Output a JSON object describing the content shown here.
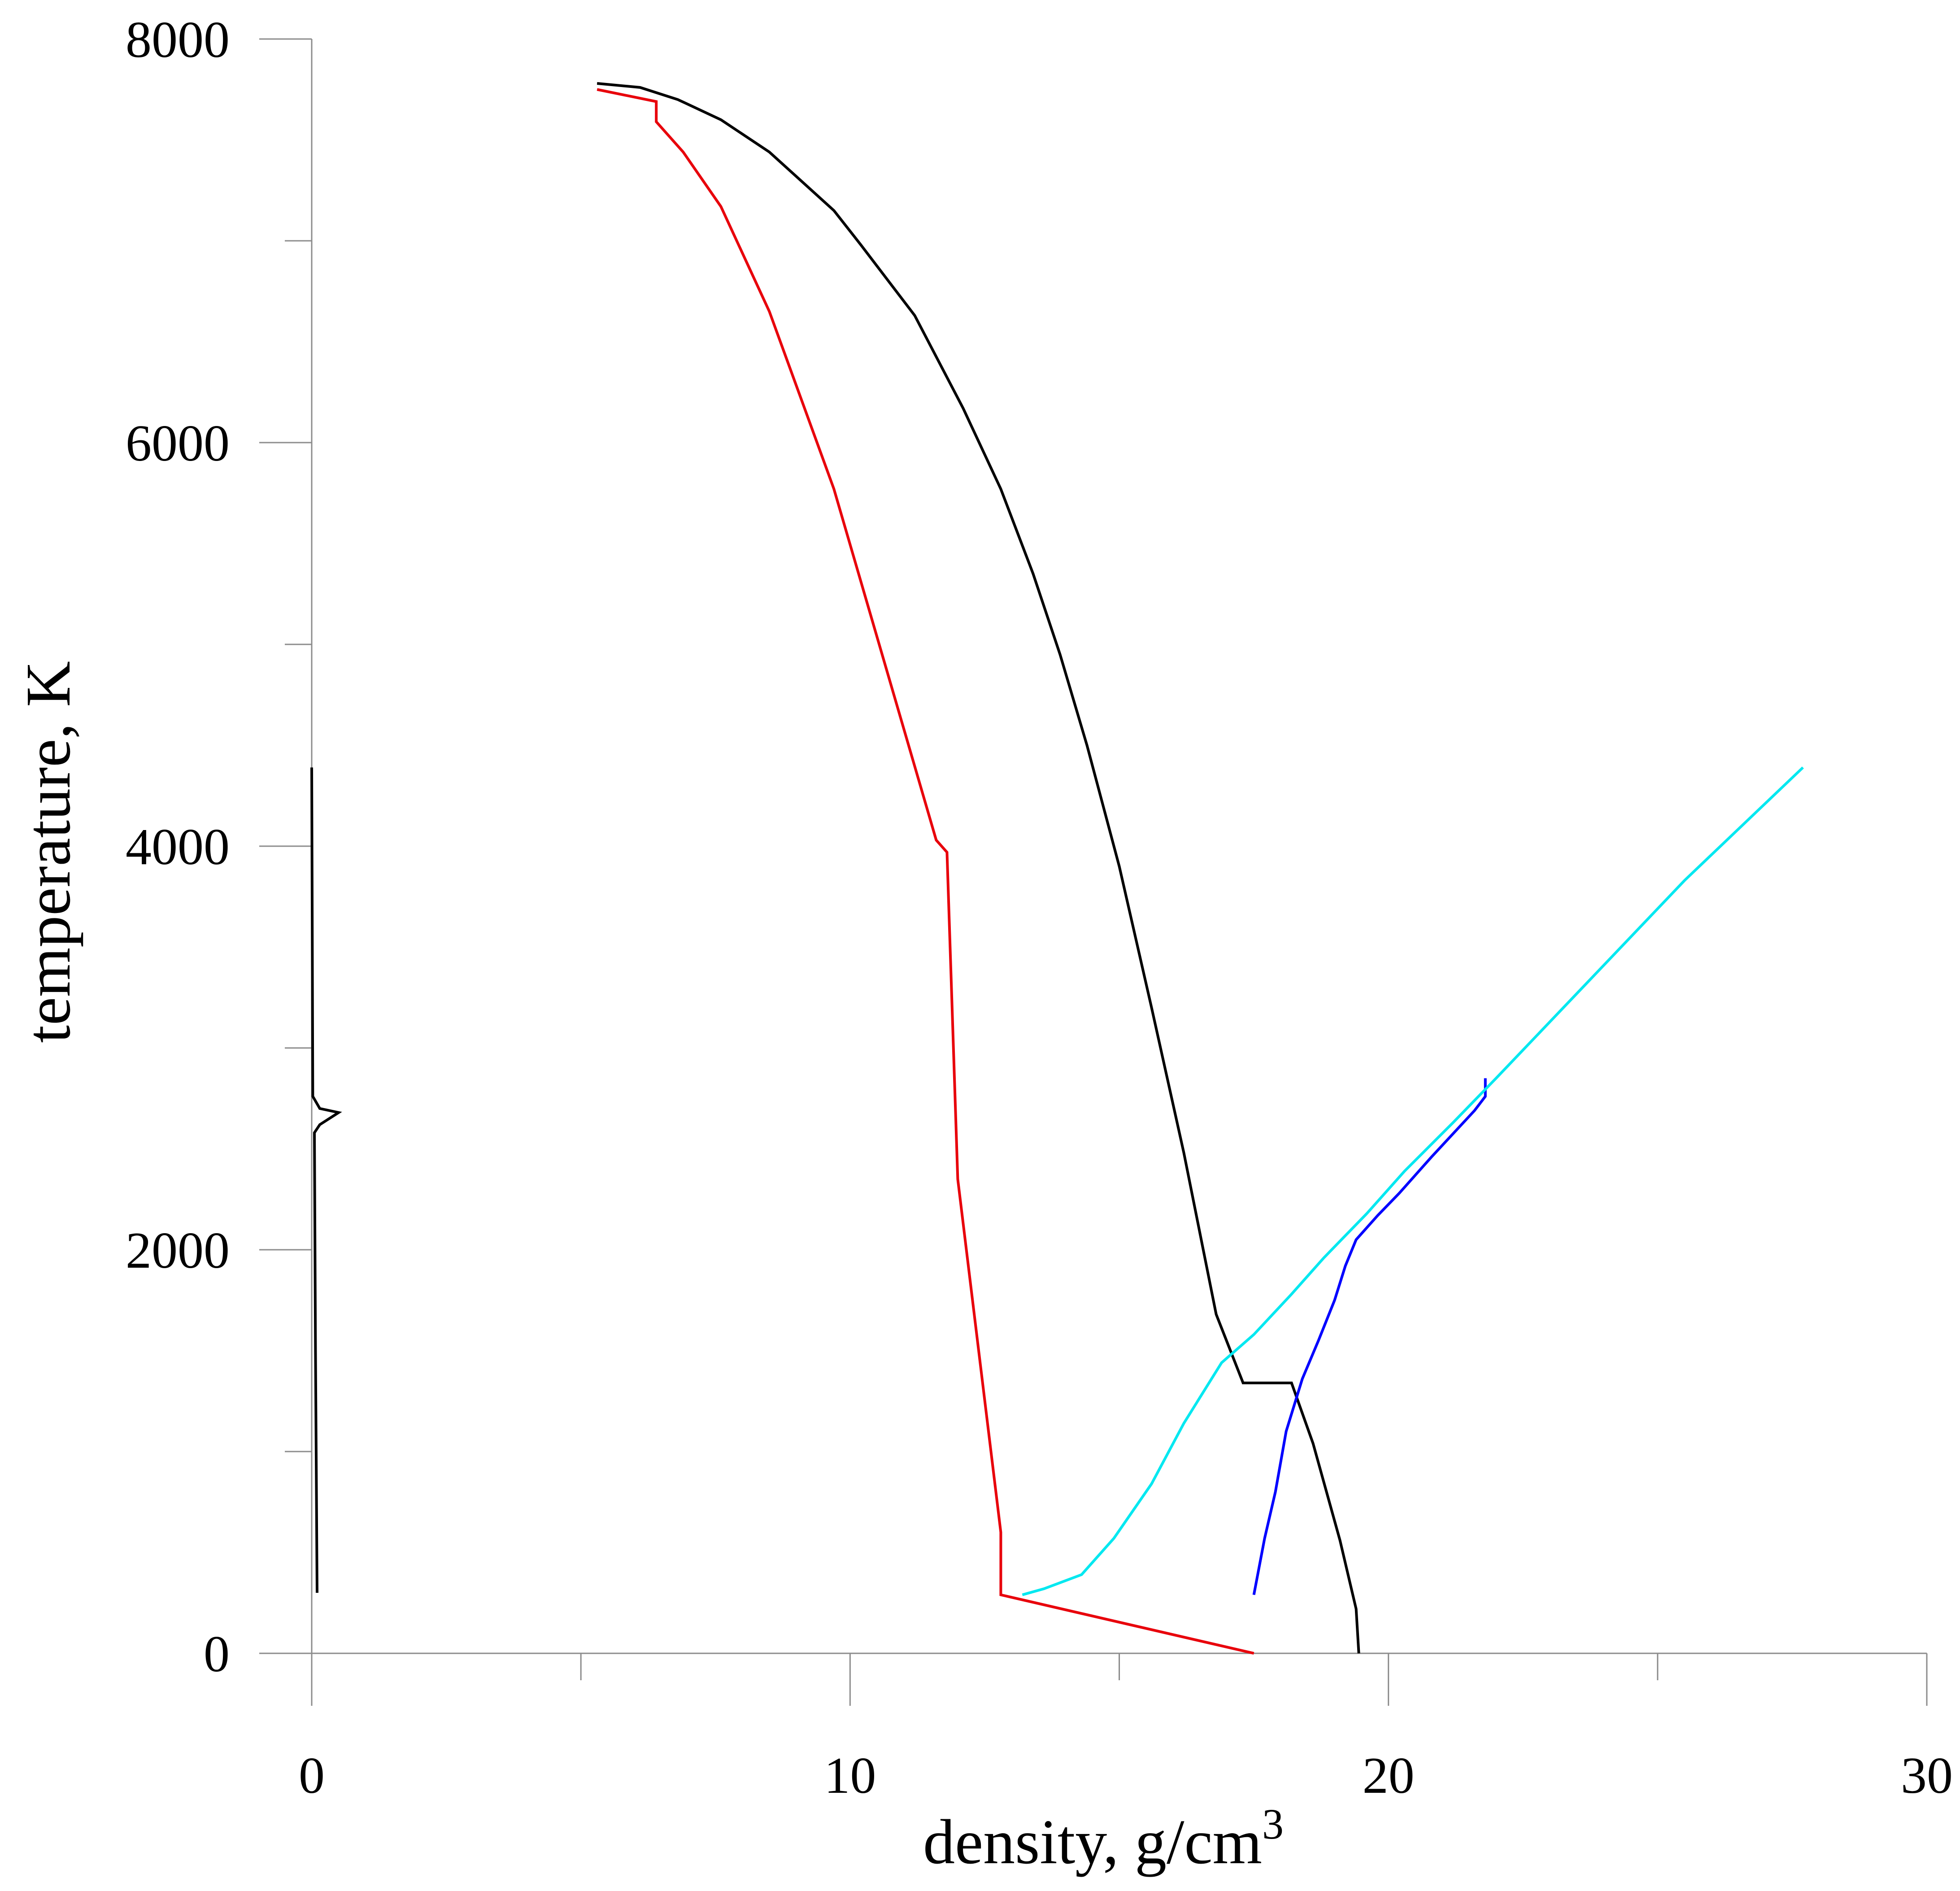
{
  "chart_data": {
    "type": "line",
    "title": "",
    "xlabel": "density, g/cm",
    "xlabel_sup": "3",
    "ylabel": "temperature, K",
    "xlim": [
      0,
      30
    ],
    "ylim": [
      0,
      8000
    ],
    "x_ticks": [
      0,
      10,
      20,
      30
    ],
    "x_tick_labels": [
      "0",
      "10",
      "20",
      "30"
    ],
    "x_minor_ticks": [
      5,
      15,
      25
    ],
    "y_ticks": [
      0,
      2000,
      4000,
      6000,
      8000
    ],
    "y_tick_labels": [
      "0",
      "2000",
      "4000",
      "6000",
      "8000"
    ],
    "y_minor_ticks": [
      1000,
      3000,
      5000,
      7000
    ],
    "grid": false,
    "legend": "none",
    "series": [
      {
        "color": "#000000",
        "points": [
          [
            5.3,
            7780
          ],
          [
            6.1,
            7760
          ],
          [
            6.8,
            7700
          ],
          [
            7.6,
            7600
          ],
          [
            8.5,
            7440
          ],
          [
            9.7,
            7150
          ],
          [
            10.2,
            6980
          ],
          [
            11.2,
            6630
          ],
          [
            12.1,
            6170
          ],
          [
            12.8,
            5770
          ],
          [
            13.4,
            5350
          ],
          [
            13.9,
            4950
          ],
          [
            14.4,
            4500
          ],
          [
            15.0,
            3900
          ],
          [
            15.6,
            3200
          ],
          [
            16.2,
            2480
          ],
          [
            16.8,
            1680
          ],
          [
            17.3,
            1340
          ],
          [
            18.2,
            1340
          ],
          [
            18.6,
            1040
          ],
          [
            19.1,
            560
          ],
          [
            19.4,
            220
          ],
          [
            19.45,
            0
          ]
        ]
      },
      {
        "color": "#e8000b",
        "points": [
          [
            5.3,
            7750
          ],
          [
            6.4,
            7690
          ],
          [
            6.4,
            7590
          ],
          [
            6.9,
            7440
          ],
          [
            7.6,
            7170
          ],
          [
            8.5,
            6650
          ],
          [
            9.7,
            5770
          ],
          [
            11.6,
            4030
          ],
          [
            11.8,
            3970
          ],
          [
            12.0,
            2350
          ],
          [
            12.8,
            600
          ],
          [
            12.8,
            290
          ],
          [
            17.5,
            0
          ]
        ]
      },
      {
        "color": "#0000ff",
        "points": [
          [
            17.5,
            290
          ],
          [
            17.7,
            570
          ],
          [
            17.9,
            800
          ],
          [
            18.1,
            1100
          ],
          [
            18.4,
            1360
          ],
          [
            18.7,
            1550
          ],
          [
            19.0,
            1750
          ],
          [
            19.2,
            1920
          ],
          [
            19.4,
            2050
          ],
          [
            19.8,
            2170
          ],
          [
            20.2,
            2280
          ],
          [
            20.8,
            2460
          ],
          [
            21.6,
            2690
          ],
          [
            21.8,
            2760
          ],
          [
            21.8,
            2850
          ]
        ]
      },
      {
        "color": "#00e8f0",
        "points": [
          [
            13.2,
            290
          ],
          [
            13.6,
            320
          ],
          [
            14.3,
            390
          ],
          [
            14.9,
            570
          ],
          [
            15.6,
            840
          ],
          [
            16.2,
            1140
          ],
          [
            16.9,
            1440
          ],
          [
            17.5,
            1580
          ],
          [
            18.2,
            1780
          ],
          [
            18.8,
            1960
          ],
          [
            19.2,
            2070
          ],
          [
            19.6,
            2180
          ],
          [
            20.3,
            2390
          ],
          [
            21.2,
            2630
          ],
          [
            22.0,
            2850
          ],
          [
            23.5,
            3270
          ],
          [
            25.5,
            3830
          ],
          [
            27.7,
            4390
          ]
        ]
      },
      {
        "color": "#000000",
        "points": [
          [
            0.0,
            4390
          ],
          [
            0.02,
            2760
          ],
          [
            0.15,
            2700
          ],
          [
            0.5,
            2680
          ],
          [
            0.15,
            2620
          ],
          [
            0.05,
            2580
          ],
          [
            0.07,
            1500
          ],
          [
            0.1,
            300
          ]
        ]
      }
    ]
  }
}
